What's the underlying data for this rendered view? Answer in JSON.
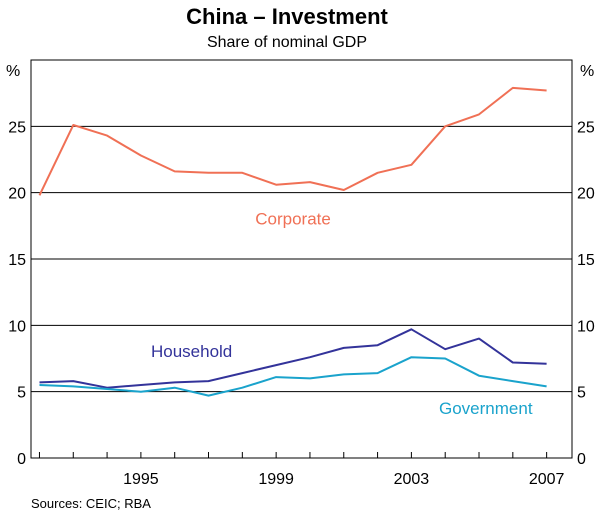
{
  "chart_data": {
    "type": "line",
    "title": "China – Investment",
    "subtitle": "Share of nominal GDP",
    "ylabel_left": "%",
    "ylabel_right": "%",
    "ylim": [
      0,
      30
    ],
    "yticks": [
      0,
      5,
      10,
      15,
      20,
      25
    ],
    "xlim": [
      1991.75,
      2007.75
    ],
    "xticks": [
      1995,
      1999,
      2003,
      2007
    ],
    "x": [
      1992,
      1993,
      1994,
      1995,
      1996,
      1997,
      1998,
      1999,
      2000,
      2001,
      2002,
      2003,
      2004,
      2005,
      2006,
      2007
    ],
    "series": [
      {
        "name": "Corporate",
        "color": "#F07055",
        "values": [
          19.8,
          25.1,
          24.3,
          22.8,
          21.6,
          21.5,
          21.5,
          20.6,
          20.8,
          20.2,
          21.5,
          22.1,
          25.0,
          25.9,
          27.9,
          27.7
        ]
      },
      {
        "name": "Household",
        "color": "#33339A",
        "values": [
          5.7,
          5.8,
          5.3,
          5.5,
          5.7,
          5.8,
          6.4,
          7.0,
          7.6,
          8.3,
          8.5,
          9.7,
          8.2,
          9.0,
          7.2,
          7.1
        ]
      },
      {
        "name": "Government",
        "color": "#1AA3CC",
        "values": [
          5.5,
          5.4,
          5.2,
          5.0,
          5.3,
          4.7,
          5.3,
          6.1,
          6.0,
          6.3,
          6.4,
          7.6,
          7.5,
          6.2,
          5.8,
          5.4
        ]
      }
    ],
    "source": "Sources: CEIC; RBA"
  }
}
